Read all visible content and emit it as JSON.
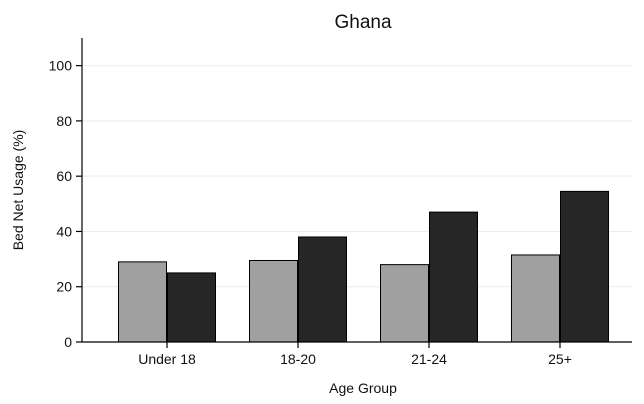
{
  "chart_data": {
    "type": "bar",
    "title": "Ghana",
    "xlabel": "Age Group",
    "ylabel": "Bed Net Usage (%)",
    "categories": [
      "Under 18",
      "18-20",
      "21-24",
      "25+"
    ],
    "series": [
      {
        "values": [
          29,
          29.5,
          28,
          31.5
        ],
        "color": "#a0a0a0"
      },
      {
        "values": [
          25,
          38,
          47,
          54.5
        ],
        "color": "#262626"
      }
    ],
    "ylim": [
      0,
      110
    ],
    "yticks": [
      0,
      20,
      40,
      60,
      80,
      100
    ],
    "grid": true,
    "legend": "none"
  }
}
